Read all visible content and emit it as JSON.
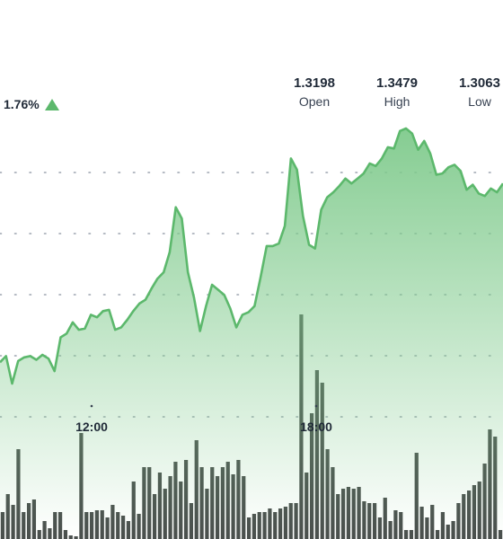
{
  "quote": {
    "change_percent": "1.76%",
    "direction_icon": "triangle-up-icon",
    "open": {
      "value": "1.3198",
      "label": "Open"
    },
    "high": {
      "value": "1.3479",
      "label": "High"
    },
    "low": {
      "value": "1.3063",
      "label": "Low"
    }
  },
  "colors": {
    "accent": "#5cb86c",
    "area_top": "#7fca8c",
    "bar": "#4a4f4d",
    "grid": "#9ca3af"
  },
  "chart_data": {
    "type": "area",
    "time_labels": [
      "12:00",
      "18:00"
    ],
    "y_range": [
      1.3063,
      1.3479
    ],
    "grid": "dotted",
    "price": [
      1.3115,
      1.312,
      1.3098,
      1.3116,
      1.3119,
      1.312,
      1.3117,
      1.3121,
      1.3118,
      1.3108,
      1.3135,
      1.3138,
      1.3147,
      1.3141,
      1.3142,
      1.3153,
      1.3151,
      1.3156,
      1.3157,
      1.3141,
      1.3143,
      1.3149,
      1.3156,
      1.3162,
      1.3165,
      1.3174,
      1.3182,
      1.3187,
      1.3203,
      1.3239,
      1.323,
      1.3187,
      1.3167,
      1.314,
      1.316,
      1.3177,
      1.3173,
      1.3169,
      1.3158,
      1.3143,
      1.3153,
      1.3155,
      1.316,
      1.3183,
      1.3208,
      1.3208,
      1.321,
      1.3224,
      1.3278,
      1.3269,
      1.3232,
      1.3209,
      1.3206,
      1.3237,
      1.3247,
      1.3251,
      1.3256,
      1.3262,
      1.3258,
      1.3262,
      1.3266,
      1.3274,
      1.3272,
      1.3278,
      1.3287,
      1.3286,
      1.33,
      1.3302,
      1.3298,
      1.3285,
      1.3292,
      1.3282,
      1.3265,
      1.3266,
      1.3271,
      1.3273,
      1.3268,
      1.3253,
      1.3257,
      1.325,
      1.3248,
      1.3254,
      1.3251,
      1.3258
    ],
    "volume": [
      30,
      50,
      38,
      100,
      30,
      40,
      44,
      10,
      20,
      12,
      30,
      30,
      10,
      4,
      3,
      118,
      30,
      30,
      32,
      32,
      24,
      38,
      30,
      26,
      20,
      64,
      28,
      80,
      80,
      50,
      74,
      56,
      70,
      86,
      64,
      88,
      40,
      110,
      80,
      56,
      80,
      70,
      80,
      86,
      72,
      88,
      70,
      24,
      28,
      30,
      30,
      34,
      30,
      34,
      36,
      40,
      40,
      250,
      74,
      140,
      188,
      174,
      100,
      80,
      50,
      56,
      58,
      56,
      58,
      42,
      40,
      40,
      24,
      46,
      20,
      32,
      30,
      10,
      10,
      96,
      36,
      24,
      38,
      10,
      30,
      16,
      20,
      40,
      50,
      54,
      60,
      64,
      84,
      122,
      114,
      10
    ]
  }
}
